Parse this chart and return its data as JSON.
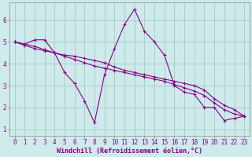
{
  "xlabel": "Windchill (Refroidissement éolien,°C)",
  "bg_color": "#ceeaea",
  "grid_color": "#a0cccc",
  "line_color": "#880088",
  "spine_color": "#888888",
  "xlim": [
    -0.5,
    23.5
  ],
  "ylim": [
    0.7,
    6.8
  ],
  "xticks": [
    0,
    1,
    2,
    3,
    4,
    5,
    6,
    7,
    8,
    9,
    10,
    11,
    12,
    13,
    14,
    15,
    16,
    17,
    18,
    19,
    20,
    21,
    22,
    23
  ],
  "yticks": [
    1,
    2,
    3,
    4,
    5,
    6
  ],
  "line1_x": [
    0,
    1,
    2,
    3,
    4,
    5,
    6,
    7,
    8,
    9,
    10,
    11,
    12,
    13,
    14,
    15,
    16,
    17,
    18,
    19,
    20,
    21,
    22,
    23
  ],
  "line1_y": [
    5.0,
    4.9,
    5.1,
    5.1,
    4.5,
    3.6,
    3.1,
    2.3,
    1.3,
    3.5,
    4.7,
    5.8,
    6.5,
    5.5,
    5.0,
    4.4,
    3.0,
    2.7,
    2.6,
    2.0,
    2.0,
    1.4,
    1.5,
    1.6
  ],
  "line2_x": [
    0,
    1,
    2,
    3,
    4,
    5,
    6,
    7,
    8,
    9,
    10,
    11,
    12,
    13,
    14,
    15,
    16,
    17,
    18,
    19,
    20,
    21,
    22,
    23
  ],
  "line2_y": [
    5.0,
    4.85,
    4.7,
    4.6,
    4.5,
    4.4,
    4.35,
    4.25,
    4.15,
    4.05,
    3.85,
    3.7,
    3.6,
    3.5,
    3.4,
    3.3,
    3.2,
    3.1,
    3.0,
    2.8,
    2.4,
    2.1,
    1.9,
    1.6
  ],
  "line3_x": [
    0,
    1,
    2,
    3,
    4,
    5,
    6,
    7,
    8,
    9,
    10,
    11,
    12,
    13,
    14,
    15,
    16,
    17,
    18,
    19,
    20,
    21,
    22,
    23
  ],
  "line3_y": [
    5.0,
    4.9,
    4.8,
    4.65,
    4.5,
    4.35,
    4.2,
    4.05,
    3.9,
    3.8,
    3.7,
    3.6,
    3.5,
    3.4,
    3.3,
    3.2,
    3.05,
    2.9,
    2.75,
    2.55,
    2.2,
    1.9,
    1.7,
    1.6
  ],
  "tick_fontsize": 5.5,
  "xlabel_fontsize": 6.0,
  "linewidth": 0.8,
  "markersize": 3.0,
  "figsize": [
    3.2,
    2.0
  ],
  "dpi": 100
}
